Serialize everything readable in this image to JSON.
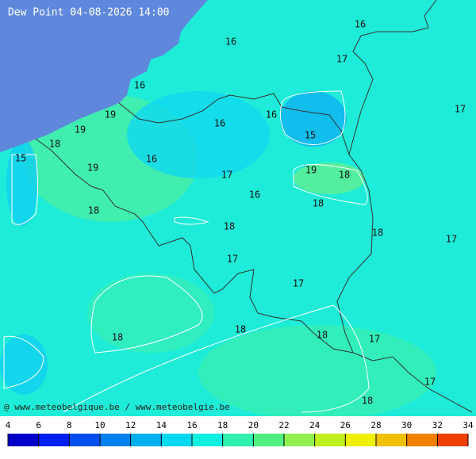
{
  "title": "Dew Point 04-08-2026 14:00",
  "credit": "@ www.meteobelgique.be / www.meteobelgie.be",
  "labels": [
    16,
    16,
    17,
    16,
    17,
    19,
    16,
    16,
    19,
    15,
    18,
    15,
    16,
    19,
    19,
    18,
    17,
    16,
    18,
    18,
    18,
    18,
    17,
    17,
    17,
    18,
    18,
    17,
    18,
    17,
    18
  ],
  "colorbar": {
    "ticks": [
      4,
      6,
      8,
      10,
      12,
      14,
      16,
      18,
      20,
      22,
      24,
      26,
      28,
      30,
      32,
      34
    ]
  }
}
